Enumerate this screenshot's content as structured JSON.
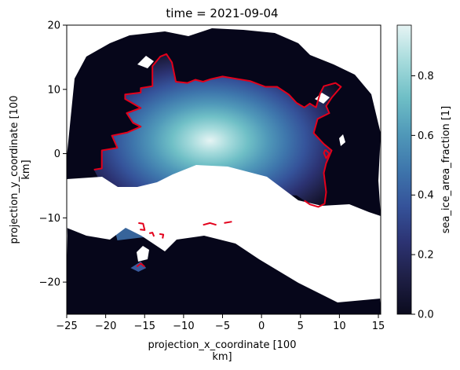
{
  "chart_data": {
    "type": "heatmap",
    "title": "time = 2021-09-04",
    "xlabel_lines": [
      "projection_x_coordinate [100",
      "km]"
    ],
    "ylabel_lines": [
      "projection_y_coordinate [100",
      "km]"
    ],
    "xlim": [
      -25,
      15.3
    ],
    "ylim": [
      -25,
      20
    ],
    "xticks": [
      -25,
      -20,
      -15,
      -10,
      -5,
      0,
      5,
      10,
      15
    ],
    "yticks": [
      -20,
      -10,
      0,
      10,
      20
    ],
    "colorbar": {
      "label": "sea_ice_area_fraction [1]",
      "range": [
        0,
        0.97
      ],
      "ticks": [
        0.0,
        0.2,
        0.4,
        0.6,
        0.8
      ],
      "tick_labels": [
        "0.0",
        "0.2",
        "0.4",
        "0.6",
        "0.8"
      ],
      "colormap": [
        "#0b0b1e",
        "#1e1f45",
        "#2c3373",
        "#35539a",
        "#3e76ac",
        "#5099b9",
        "#6fbfc6",
        "#a6dbdc",
        "#e6f4f4"
      ]
    },
    "contour_color": "#e3001b",
    "land_color": "#ffffff",
    "ocean_color": "#06061a",
    "ice_edge_contour": [
      [
        -21.5,
        -2.5
      ],
      [
        -20.5,
        -2.3
      ],
      [
        -20.5,
        0.5
      ],
      [
        -18.5,
        0.9
      ],
      [
        -19.2,
        2.8
      ],
      [
        -17.2,
        3.3
      ],
      [
        -15.5,
        4.2
      ],
      [
        -16.5,
        4.8
      ],
      [
        -17.3,
        6.3
      ],
      [
        -15.5,
        7.1
      ],
      [
        -17.5,
        8.5
      ],
      [
        -17.5,
        9.2
      ],
      [
        -15.5,
        9.5
      ],
      [
        -15.5,
        10.2
      ],
      [
        -14.0,
        10.5
      ],
      [
        -14.0,
        13.6
      ],
      [
        -13.0,
        15.1
      ],
      [
        -12.2,
        15.5
      ],
      [
        -11.5,
        14.2
      ],
      [
        -11.0,
        11.2
      ],
      [
        -9.5,
        11.0
      ],
      [
        -8.5,
        11.5
      ],
      [
        -7.5,
        11.2
      ],
      [
        -6.5,
        11.6
      ],
      [
        -5.0,
        12.0
      ],
      [
        -3.0,
        11.6
      ],
      [
        -1.5,
        11.3
      ],
      [
        0.5,
        10.4
      ],
      [
        2.0,
        10.4
      ],
      [
        3.5,
        9.2
      ],
      [
        4.5,
        7.9
      ],
      [
        5.5,
        7.2
      ],
      [
        6.2,
        7.8
      ],
      [
        7.0,
        7.2
      ],
      [
        7.5,
        9.3
      ],
      [
        8.0,
        10.5
      ],
      [
        9.5,
        11.0
      ],
      [
        10.2,
        10.4
      ],
      [
        9.0,
        8.7
      ],
      [
        8.3,
        7.4
      ],
      [
        8.7,
        6.3
      ],
      [
        7.2,
        5.4
      ],
      [
        6.7,
        3.2
      ],
      [
        8.0,
        1.5
      ],
      [
        9.0,
        0.5
      ],
      [
        8.3,
        -1.5
      ],
      [
        8.0,
        -3.0
      ],
      [
        8.3,
        -6.0
      ],
      [
        8.1,
        -7.8
      ],
      [
        7.3,
        -8.3
      ],
      [
        6.2,
        -7.9
      ],
      [
        5.5,
        -7.3
      ]
    ],
    "ice_edge_fragments": [
      [
        [
          -15.8,
          -10.8
        ],
        [
          -15.2,
          -10.9
        ],
        [
          -15.0,
          -11.9
        ],
        [
          -15.6,
          -11.8
        ]
      ],
      [
        [
          -14.4,
          -12.4
        ],
        [
          -14.0,
          -12.3
        ],
        [
          -13.8,
          -12.9
        ]
      ],
      [
        [
          -13.1,
          -12.5
        ],
        [
          -12.6,
          -12.6
        ],
        [
          -12.7,
          -13.2
        ]
      ],
      [
        [
          -16.0,
          -17.6
        ],
        [
          -15.5,
          -17.1
        ],
        [
          -15.0,
          -17.6
        ]
      ],
      [
        [
          -7.5,
          -11.1
        ],
        [
          -6.6,
          -10.8
        ],
        [
          -5.8,
          -11.1
        ]
      ],
      [
        [
          -4.8,
          -10.8
        ],
        [
          -3.8,
          -10.6
        ]
      ],
      [
        [
          8.2,
          0.6
        ],
        [
          8.7,
          0.0
        ],
        [
          8.3,
          -0.7
        ],
        [
          8.0,
          0.1
        ],
        [
          8.2,
          0.6
        ]
      ]
    ]
  }
}
